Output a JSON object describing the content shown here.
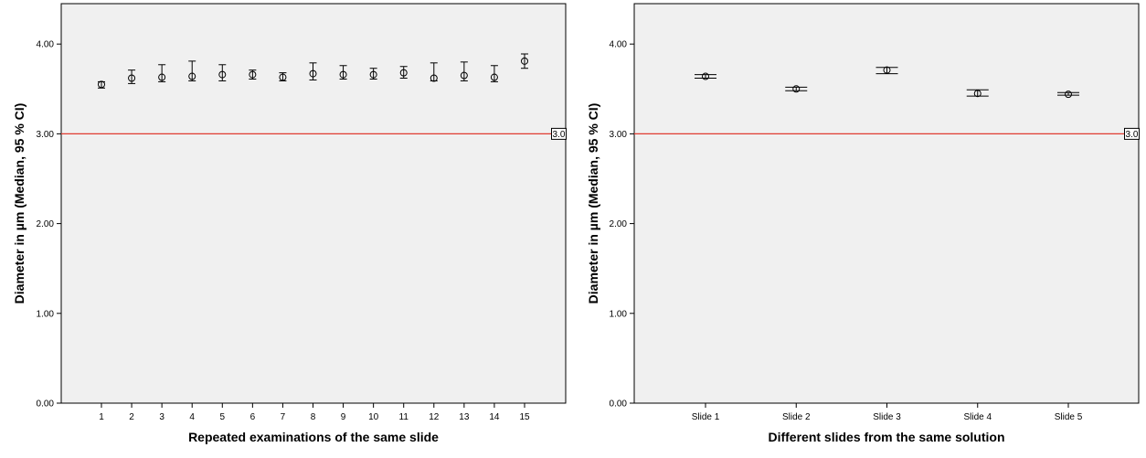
{
  "chart_data": [
    {
      "type": "scatter",
      "xlabel": "Repeated examinations of the same slide",
      "ylabel": "Diameter in  µm (Median, 95 % CI)",
      "ylim": [
        0,
        4.45
      ],
      "yticks": [
        "0.00",
        "1.00",
        "2.00",
        "3.00",
        "4.00"
      ],
      "grid": false,
      "categories": [
        "1",
        "2",
        "3",
        "4",
        "5",
        "6",
        "7",
        "8",
        "9",
        "10",
        "11",
        "12",
        "13",
        "14",
        "15"
      ],
      "median": [
        3.55,
        3.62,
        3.63,
        3.64,
        3.66,
        3.66,
        3.63,
        3.67,
        3.66,
        3.66,
        3.68,
        3.62,
        3.65,
        3.63,
        3.81
      ],
      "ci_low": [
        3.51,
        3.56,
        3.58,
        3.59,
        3.59,
        3.61,
        3.59,
        3.6,
        3.61,
        3.61,
        3.62,
        3.59,
        3.59,
        3.58,
        3.73
      ],
      "ci_high": [
        3.58,
        3.71,
        3.77,
        3.81,
        3.77,
        3.71,
        3.68,
        3.79,
        3.76,
        3.73,
        3.75,
        3.79,
        3.8,
        3.76,
        3.89
      ],
      "reference_line": {
        "value": 3.0,
        "label": "3.0",
        "color": "#e03c31"
      }
    },
    {
      "type": "scatter",
      "xlabel": "Different slides from the same solution",
      "ylabel": "Diameter in  µm (Median, 95 % CI)",
      "ylim": [
        0,
        4.45
      ],
      "yticks": [
        "0.00",
        "1.00",
        "2.00",
        "3.00",
        "4.00"
      ],
      "grid": false,
      "categories": [
        "Slide 1",
        "Slide 2",
        "Slide 3",
        "Slide 4",
        "Slide 5"
      ],
      "median": [
        3.64,
        3.5,
        3.71,
        3.45,
        3.44
      ],
      "ci_low": [
        3.62,
        3.48,
        3.67,
        3.42,
        3.43
      ],
      "ci_high": [
        3.66,
        3.52,
        3.74,
        3.49,
        3.46
      ],
      "reference_line": {
        "value": 3.0,
        "label": "3.0",
        "color": "#e03c31"
      }
    }
  ]
}
